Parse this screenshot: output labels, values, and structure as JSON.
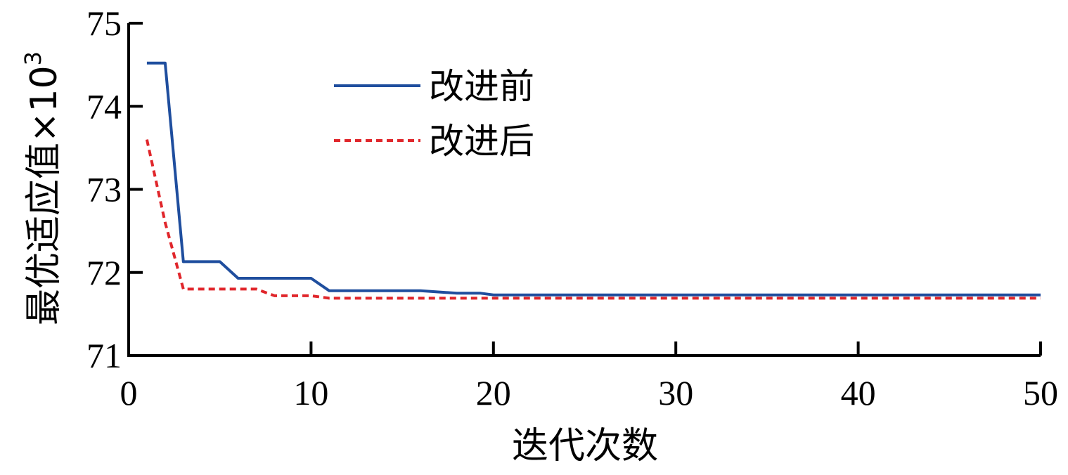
{
  "chart_data": {
    "type": "line",
    "xlabel": "迭代次数",
    "ylabel": "最优适应值×10",
    "ylabel_superscript": "3",
    "xlim": [
      0,
      50
    ],
    "ylim": [
      71,
      75
    ],
    "xticks": [
      0,
      10,
      20,
      30,
      40,
      50
    ],
    "yticks": [
      71,
      72,
      73,
      74,
      75
    ],
    "legend_position": "upper-center",
    "grid": false,
    "series": [
      {
        "name": "改进前",
        "color": "#1f4e9e",
        "style": "solid",
        "points": [
          [
            1,
            74.52
          ],
          [
            2,
            74.52
          ],
          [
            3,
            72.13
          ],
          [
            5,
            72.13
          ],
          [
            6,
            71.93
          ],
          [
            10,
            71.93
          ],
          [
            11,
            71.78
          ],
          [
            16,
            71.78
          ],
          [
            18,
            71.75
          ],
          [
            19.3,
            71.75
          ],
          [
            20,
            71.73
          ],
          [
            50,
            71.73
          ]
        ]
      },
      {
        "name": "改进后",
        "color": "#e0262b",
        "style": "dotted",
        "points": [
          [
            1,
            73.6
          ],
          [
            2,
            72.6
          ],
          [
            3,
            71.8
          ],
          [
            7,
            71.8
          ],
          [
            8,
            71.72
          ],
          [
            10,
            71.72
          ],
          [
            11,
            71.69
          ],
          [
            50,
            71.69
          ]
        ]
      }
    ]
  }
}
